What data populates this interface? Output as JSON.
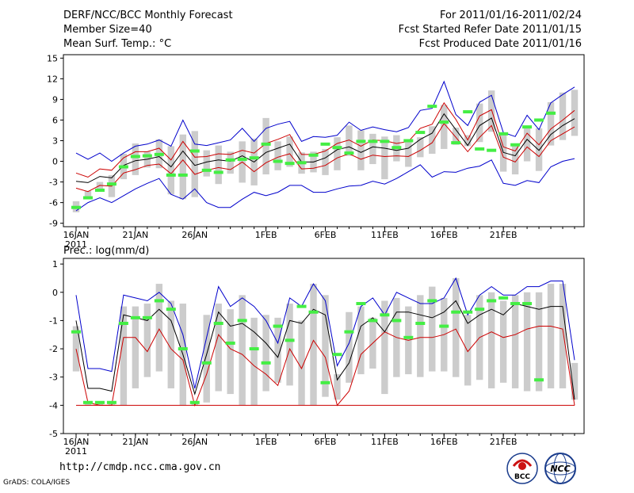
{
  "header": {
    "title": "DERF/NCC/BCC Monthly Forecast",
    "member_size": "Member Size=40",
    "variable": "Mean Surf. Temp.: °C",
    "period": "For 2011/01/16-2011/02/24",
    "started": "Fcst Started Refer Date 2011/01/15",
    "produced": "Fcst Produced Date 2011/01/16"
  },
  "footer": {
    "url": "http://cmdp.ncc.cma.gov.cn",
    "grads": "GrADS: COLA/IGES",
    "logo_bcc": "BCC",
    "logo_ncc": "NCC"
  },
  "colors": {
    "max_line": "#0000cc",
    "min_line": "#cc0000",
    "mean_line": "#000000",
    "box": "#cccccc",
    "marker": "#44ee44"
  },
  "chart_data": [
    {
      "type": "box-line",
      "title": "",
      "ylabel": "Mean Surf. Temp.: °C",
      "ylim": [
        -9.5,
        15.5
      ],
      "yticks": [
        15,
        12,
        9,
        6,
        3,
        0,
        -3,
        -6,
        -9
      ],
      "x_tick_labels": [
        "16JAN",
        "21JAN",
        "26JAN",
        "1FEB",
        "6FEB",
        "11FEB",
        "16FEB",
        "21FEB"
      ],
      "x_tick_positions": [
        0,
        5,
        10,
        16,
        21,
        26,
        31,
        36
      ],
      "x_sublabel": "2011",
      "series": [
        {
          "name": "max",
          "values": [
            1.2,
            0.3,
            1.2,
            0,
            1.2,
            2.2,
            2.5,
            3.1,
            2.2,
            6,
            2.5,
            2.3,
            2.7,
            3.1,
            4.8,
            2.9,
            4.8,
            5.4,
            5.8,
            2.9,
            3.6,
            3.5,
            3.8,
            5.7,
            4.5,
            5,
            4.6,
            4.3,
            4.9,
            7.4,
            7.7,
            11.6,
            6.8,
            5.2,
            8.6,
            9.6,
            4.2,
            3.6,
            6.7,
            4.6,
            8.5,
            9.7,
            10.8
          ]
        },
        {
          "name": "p75",
          "values": [
            -1.7,
            -2.3,
            -1.1,
            -1.3,
            0.5,
            1.4,
            1.4,
            1.9,
            0.2,
            2.9,
            0.6,
            0.7,
            1.1,
            1,
            1.6,
            1.2,
            2.6,
            3.2,
            3.9,
            1,
            1,
            1.5,
            2.6,
            3.1,
            2.2,
            3.1,
            3,
            2.6,
            2.9,
            4.8,
            5.4,
            8.5,
            6.1,
            3.1,
            6.6,
            7.5,
            2.1,
            1.5,
            4.1,
            2.4,
            4.7,
            6,
            7.4
          ]
        },
        {
          "name": "mean",
          "values": [
            -2.9,
            -3.1,
            -2.2,
            -2.4,
            -0.6,
            0.1,
            0.3,
            0.7,
            -0.8,
            1.5,
            -0.6,
            -0.1,
            0.2,
            0,
            0.8,
            -0.1,
            1.3,
            1.9,
            2.5,
            -0.1,
            -0.1,
            0.5,
            1.7,
            2.1,
            1.3,
            2.1,
            1.9,
            1.6,
            1.9,
            3.2,
            4.1,
            6.9,
            4.6,
            2.3,
            5.2,
            6.3,
            1.3,
            0.8,
            3.2,
            1.6,
            3.9,
            5.2,
            6.2
          ]
        },
        {
          "name": "p25",
          "values": [
            -3.9,
            -4.4,
            -3.5,
            -3.6,
            -1.7,
            -1.2,
            -0.6,
            -0.4,
            -1.8,
            0.2,
            -1.9,
            -1.3,
            -0.9,
            -1.2,
            -0.1,
            -1.5,
            -0.2,
            0.6,
            1.1,
            -1.1,
            -1,
            -0.6,
            0.5,
            1.1,
            0.3,
            0.9,
            0.7,
            0.8,
            0.7,
            1.6,
            2.7,
            5.5,
            3.5,
            1.4,
            3.5,
            5.2,
            0.6,
            -0.1,
            2.1,
            0.7,
            3,
            4,
            5
          ]
        },
        {
          "name": "min",
          "values": [
            -7.2,
            -6,
            -5.3,
            -6,
            -5,
            -4,
            -3.2,
            -2.5,
            -4.8,
            -5.5,
            -4,
            -6,
            -6.7,
            -6.7,
            -5.5,
            -4.5,
            -5,
            -4.5,
            -3.5,
            -3.5,
            -4.5,
            -4.5,
            -4,
            -3.6,
            -3.5,
            -2.9,
            -3.3,
            -2.5,
            -1.5,
            -0.5,
            -2.3,
            -1.5,
            -1.6,
            -1,
            -0.7,
            0.2,
            -3.2,
            -3.5,
            -2.8,
            -3.1,
            -0.8,
            0,
            0.4
          ]
        },
        {
          "name": "box_top",
          "values": [
            -5.8,
            -4.3,
            -3,
            -2,
            1.1,
            2.6,
            1.4,
            3.2,
            2.2,
            3.9,
            4.4,
            1.6,
            2.3,
            1.4,
            2.9,
            3.3,
            6.3,
            2.9,
            3.6,
            1.3,
            1.4,
            1.8,
            3.5,
            5.2,
            4.5,
            4,
            3.6,
            3.8,
            3.1,
            3.5,
            5.1,
            8.2,
            4.9,
            3.8,
            8.4,
            10.3,
            4,
            2.4,
            4.9,
            4.8,
            8.6,
            10,
            10.4
          ]
        },
        {
          "name": "box_bottom",
          "values": [
            -7.4,
            -5.5,
            -4.2,
            -5.2,
            -2.6,
            -2,
            -0.9,
            -1,
            -4.8,
            -5.5,
            -5.2,
            -2.2,
            -3.3,
            -1.8,
            -3.1,
            -3.5,
            -1.9,
            -1.3,
            -0.8,
            -1.8,
            -1.6,
            -2,
            -1.3,
            0.8,
            -1.3,
            -0.4,
            -2.6,
            0,
            -0.8,
            0.6,
            1.1,
            1.8,
            2.4,
            2.2,
            2.8,
            4.3,
            -1.5,
            -1.9,
            0,
            -1.4,
            2.3,
            3.1,
            3.7
          ]
        },
        {
          "name": "marker",
          "values": [
            -6.7,
            -5.3,
            -4.2,
            -3.3,
            -0.8,
            0.7,
            0.8,
            1,
            -2,
            -2,
            1.5,
            -1.3,
            -1.6,
            0.2,
            0.3,
            0.5,
            2.5,
            0,
            -0.3,
            -0.2,
            0.9,
            2.5,
            2,
            1.2,
            2.9,
            2.9,
            2.9,
            2,
            3,
            4.2,
            8,
            5.7,
            2.7,
            7.2,
            1.8,
            1.6,
            4,
            2.4,
            5,
            6,
            7
          ]
        }
      ]
    },
    {
      "type": "box-line",
      "title": "Prec.: log(mm/d)",
      "ylabel": "Prec.: log(mm/d)",
      "ylim": [
        -5,
        1.2
      ],
      "yticks": [
        1,
        0,
        -1,
        -2,
        -3,
        -4,
        -5
      ],
      "x_tick_labels": [
        "16JAN",
        "21JAN",
        "26JAN",
        "1FEB",
        "6FEB",
        "11FEB",
        "16FEB",
        "21FEB"
      ],
      "x_tick_positions": [
        0,
        5,
        10,
        16,
        21,
        26,
        31,
        36
      ],
      "x_sublabel": "2011",
      "series": [
        {
          "name": "max",
          "values": [
            -0.1,
            -2.7,
            -2.7,
            -2.8,
            -0.1,
            -0.2,
            -0.3,
            0,
            -0.4,
            -1.5,
            -3.4,
            -1.6,
            0.2,
            -0.5,
            -0.2,
            -0.5,
            -1,
            -1.8,
            -0.2,
            -0.5,
            0.3,
            -0.3,
            -2.6,
            -1.8,
            -0.5,
            -0.2,
            -0.8,
            0,
            -0.2,
            -0.4,
            -0.4,
            -0.2,
            0.5,
            -0.8,
            -0.1,
            0.2,
            -0.1,
            -0.1,
            0.2,
            0.2,
            0.4,
            0.4,
            -2.4
          ]
        },
        {
          "name": "mean",
          "values": [
            -1,
            -3.4,
            -3.4,
            -3.5,
            -0.8,
            -0.9,
            -1,
            -0.6,
            -1,
            -2.2,
            -3.6,
            -2.2,
            -0.7,
            -1.2,
            -1.1,
            -1.4,
            -1.8,
            -2.3,
            -1,
            -1.1,
            -0.6,
            -0.8,
            -3.1,
            -2.5,
            -1.2,
            -0.9,
            -1.4,
            -0.7,
            -0.7,
            -0.8,
            -0.9,
            -0.7,
            -0.3,
            -1.1,
            -0.8,
            -0.6,
            -0.8,
            -0.4,
            -0.5,
            -0.6,
            -0.5,
            -0.5,
            -3.8
          ]
        },
        {
          "name": "min",
          "values": [
            -2,
            -3.9,
            -4,
            -4,
            -1.6,
            -1.6,
            -2.1,
            -1.3,
            -2,
            -2.4,
            -4,
            -2.9,
            -1.5,
            -2,
            -2.2,
            -2.6,
            -2.9,
            -3.3,
            -2,
            -2.7,
            -1.7,
            -2.3,
            -4,
            -3.5,
            -2.2,
            -1.8,
            -1.4,
            -1.6,
            -1.7,
            -1.6,
            -1.6,
            -1.5,
            -1.3,
            -2.1,
            -1.6,
            -1.4,
            -1.6,
            -1.5,
            -1.3,
            -1.2,
            -1.2,
            -1.3,
            -4
          ]
        },
        {
          "name": "lower_bound",
          "values": [
            -4,
            -4,
            -4,
            -4,
            -4,
            -4,
            -4,
            -4,
            -4,
            -4,
            -4,
            -4,
            -4,
            -4,
            -4,
            -4,
            -4,
            -4,
            -4,
            -4,
            -4,
            -4,
            -4,
            -4,
            -4,
            -4,
            -4,
            -4,
            -4,
            -4,
            -4,
            -4,
            -4,
            -4,
            -4,
            -4,
            -4,
            -4,
            -4,
            -4,
            -4,
            -4,
            -4
          ]
        },
        {
          "name": "box_top",
          "values": [
            -1.2,
            -3.9,
            -3.9,
            -3.9,
            -0.5,
            -0.5,
            -0.4,
            0.3,
            -0.3,
            -0.4,
            -3.9,
            -0.8,
            -0.4,
            -0.6,
            -0.1,
            -0.9,
            -0.8,
            -0.9,
            -0.4,
            -1,
            0.3,
            -0.1,
            -2.9,
            -0.7,
            -0.5,
            -0.9,
            -0.3,
            -0.2,
            -0.5,
            -0.1,
            0.2,
            -0.2,
            0.5,
            -0.8,
            -0.1,
            0,
            -0.3,
            -0.1,
            0,
            0,
            0.3,
            0.3,
            -2.5
          ]
        },
        {
          "name": "box_bottom",
          "values": [
            -2.8,
            -4,
            -4,
            -4,
            -4,
            -3.4,
            -3,
            -2.8,
            -3.4,
            -4,
            -4,
            -3.9,
            -3.5,
            -3.6,
            -4,
            -4,
            -3.5,
            -3.2,
            -3.3,
            -4,
            -4,
            -3.7,
            -3.8,
            -3.2,
            -2.9,
            -2.7,
            -3.6,
            -3,
            -2.9,
            -3,
            -2.8,
            -2.8,
            -3,
            -3.3,
            -3.1,
            -3.4,
            -3.2,
            -3.4,
            -3.5,
            -3.5,
            -3.4,
            -3.4,
            -3.8
          ]
        },
        {
          "name": "marker",
          "values": [
            -1.4,
            -3.9,
            -3.9,
            -3.9,
            -1.1,
            -0.9,
            -0.9,
            -0.3,
            -0.6,
            -2,
            -3.9,
            -2.5,
            -1.1,
            -1.8,
            -1,
            -2,
            -2.5,
            -1.2,
            -1.7,
            -0.5,
            -0.7,
            -3.2,
            -2.2,
            -1.4,
            -0.4,
            -1,
            -0.8,
            -1,
            -1.6,
            -1.1,
            -0.3,
            -1.2,
            -0.7,
            -0.7,
            -0.6,
            -0.3,
            -0.2,
            -0.4,
            -0.4,
            -3.1
          ]
        }
      ]
    }
  ]
}
